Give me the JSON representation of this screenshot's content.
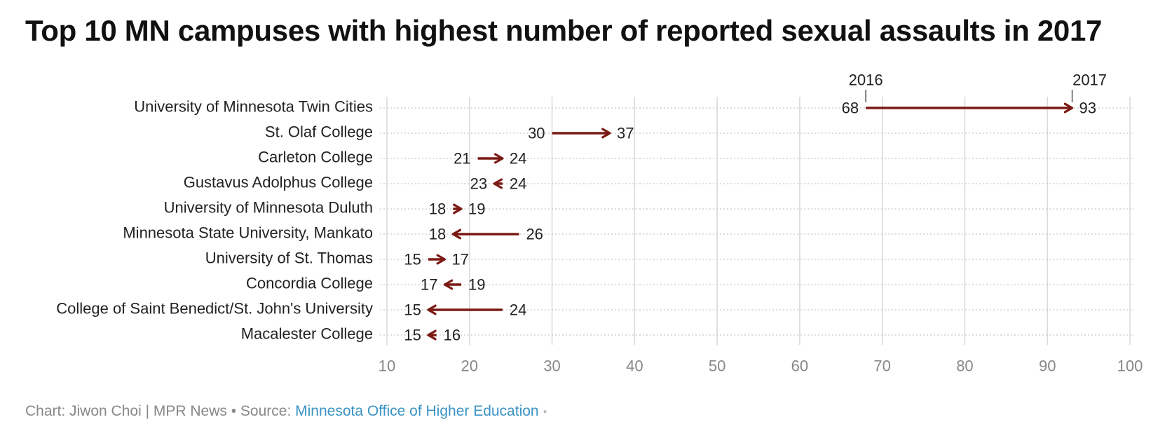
{
  "title": "Top 10 MN campuses with highest number of reported sexual assaults in 2017",
  "footer": {
    "credit": "Chart: Jiwon Choi | MPR News",
    "separator": " • ",
    "source_label": "Source: ",
    "source_name": "Minnesota Office of Higher Education"
  },
  "colors": {
    "arrow": "#7b1a14",
    "grid": "#d9d9d9",
    "row_line": "#bbbbbb",
    "tick_text": "#888888",
    "label_text": "#222222",
    "link": "#3a93c4"
  },
  "chart_data": {
    "type": "arrow",
    "title": "Top 10 MN campuses with highest number of reported sexual assaults in 2017",
    "xlim": [
      10,
      100
    ],
    "x_ticks": [
      10,
      20,
      30,
      40,
      50,
      60,
      70,
      80,
      90,
      100
    ],
    "grid": true,
    "legend": {
      "start_label": "2016",
      "end_label": "2017",
      "placement": "top, attached to first row"
    },
    "series": [
      {
        "name": "2016"
      },
      {
        "name": "2017"
      }
    ],
    "categories": [
      "University of Minnesota Twin Cities",
      "St. Olaf College",
      "Carleton College",
      "Gustavus Adolphus College",
      "University of Minnesota Duluth",
      "Minnesota State University, Mankato",
      "University of St. Thomas",
      "Concordia College",
      "College of Saint Benedict/St. John's University",
      "Macalester College"
    ],
    "rows": [
      {
        "label": "University of Minnesota Twin Cities",
        "y2016": 68,
        "y2017": 93
      },
      {
        "label": "St. Olaf College",
        "y2016": 30,
        "y2017": 37
      },
      {
        "label": "Carleton College",
        "y2016": 21,
        "y2017": 24
      },
      {
        "label": "Gustavus Adolphus College",
        "y2016": 24,
        "y2017": 23
      },
      {
        "label": "University of Minnesota Duluth",
        "y2016": 18,
        "y2017": 19
      },
      {
        "label": "Minnesota State University, Mankato",
        "y2016": 26,
        "y2017": 18
      },
      {
        "label": "University of St. Thomas",
        "y2016": 15,
        "y2017": 17
      },
      {
        "label": "Concordia College",
        "y2016": 19,
        "y2017": 17
      },
      {
        "label": "College of Saint Benedict/St. John's University",
        "y2016": 24,
        "y2017": 15
      },
      {
        "label": "Macalester College",
        "y2016": 16,
        "y2017": 15
      }
    ]
  }
}
